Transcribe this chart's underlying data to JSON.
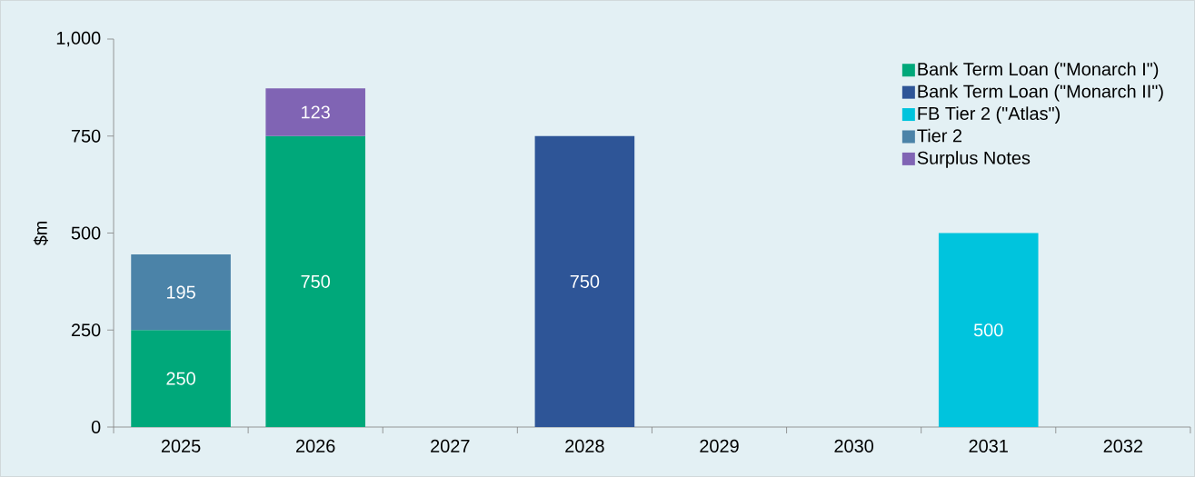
{
  "chart_data": {
    "type": "bar",
    "stacked": true,
    "ylabel": "$m",
    "categories": [
      "2025",
      "2026",
      "2027",
      "2028",
      "2029",
      "2030",
      "2031",
      "2032"
    ],
    "series": [
      {
        "name": "Bank Term Loan (\"Monarch I\")",
        "color": "#00a87a",
        "values": [
          250,
          750,
          null,
          null,
          null,
          null,
          null,
          null
        ]
      },
      {
        "name": "Bank Term Loan (\"Monarch II\")",
        "color": "#2e5597",
        "values": [
          null,
          null,
          null,
          750,
          null,
          null,
          null,
          null
        ]
      },
      {
        "name": "FB Tier 2 (\"Atlas\")",
        "color": "#00c4dd",
        "values": [
          null,
          null,
          null,
          null,
          null,
          null,
          500,
          null
        ]
      },
      {
        "name": "Tier 2",
        "color": "#4b83a8",
        "values": [
          195,
          null,
          null,
          null,
          null,
          null,
          null,
          null
        ]
      },
      {
        "name": "Surplus Notes",
        "color": "#8064b4",
        "values": [
          null,
          123,
          null,
          null,
          null,
          null,
          null,
          null
        ]
      }
    ],
    "ylim": [
      0,
      1000
    ],
    "yticks": [
      0,
      250,
      500,
      750,
      {
        "value": 1000,
        "label": "1,000"
      }
    ],
    "data_labels": true,
    "legend": "top right",
    "grid": false
  }
}
